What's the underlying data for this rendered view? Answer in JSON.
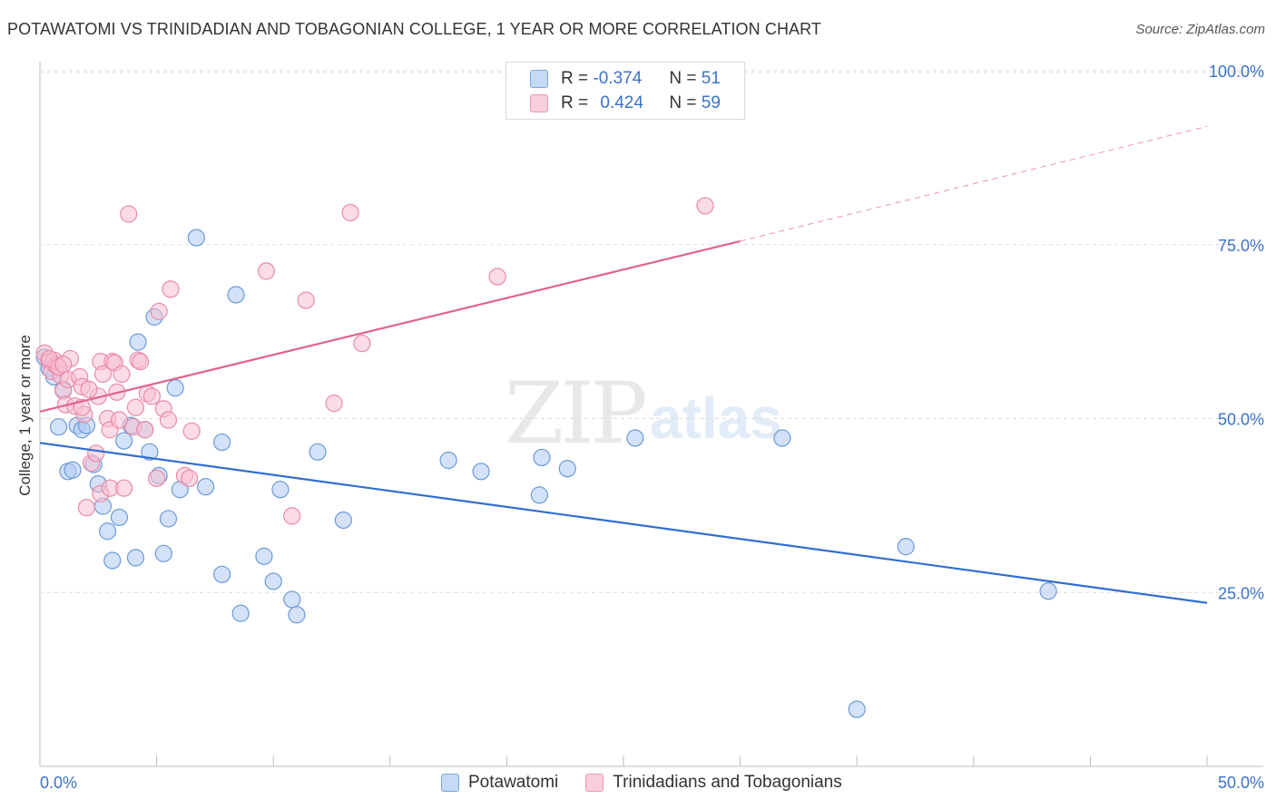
{
  "title": "POTAWATOMI VS TRINIDADIAN AND TOBAGONIAN COLLEGE, 1 YEAR OR MORE CORRELATION CHART",
  "source": "Source: ZipAtlas.com",
  "watermark": {
    "zip": "ZIP",
    "atlas": "atlas"
  },
  "legend": {
    "r_label": "R =",
    "n_label": "N =",
    "series1": {
      "r": "-0.374",
      "n": "51"
    },
    "series2": {
      "r": "0.424",
      "n": "59"
    }
  },
  "colors": {
    "blue_fill": "#aecbf2",
    "blue_stroke": "#6b9ad8",
    "blue_line": "#2f6fcf",
    "pink_fill": "#f7c0d1",
    "pink_stroke": "#e98aa8",
    "pink_line": "#e0648d",
    "grid": "#dcdcdc",
    "tick_label": "#3a72c8"
  },
  "chart_data": {
    "type": "scatter",
    "title": "POTAWATOMI VS TRINIDADIAN AND TOBAGONIAN COLLEGE, 1 YEAR OR MORE CORRELATION CHART",
    "xlabel": "",
    "ylabel": "College, 1 year or more",
    "xlim": [
      0,
      50
    ],
    "ylim": [
      0,
      105
    ],
    "x_tick_labels": [
      "0.0%",
      "50.0%"
    ],
    "y_ticks": [
      25,
      50,
      75,
      100
    ],
    "y_tick_labels": [
      "25.0%",
      "50.0%",
      "75.0%",
      "100.0%"
    ],
    "grid": true,
    "series": [
      {
        "name": "Potawatomi",
        "trend": {
          "x": [
            0,
            50
          ],
          "y": [
            46.5,
            23.5
          ],
          "dashed_from": null
        },
        "points": [
          [
            0.2,
            58.8
          ],
          [
            0.4,
            57.2
          ],
          [
            0.6,
            56.0
          ],
          [
            0.8,
            48.8
          ],
          [
            1.0,
            54.2
          ],
          [
            1.2,
            42.4
          ],
          [
            1.4,
            42.6
          ],
          [
            1.6,
            49.0
          ],
          [
            1.8,
            48.4
          ],
          [
            2.0,
            49.0
          ],
          [
            2.3,
            43.4
          ],
          [
            2.5,
            40.6
          ],
          [
            2.7,
            37.4
          ],
          [
            2.9,
            33.8
          ],
          [
            3.1,
            29.6
          ],
          [
            3.4,
            35.8
          ],
          [
            3.6,
            46.8
          ],
          [
            3.9,
            49.0
          ],
          [
            4.1,
            30.0
          ],
          [
            4.2,
            61.0
          ],
          [
            4.5,
            48.4
          ],
          [
            4.7,
            45.2
          ],
          [
            4.9,
            64.6
          ],
          [
            5.1,
            41.8
          ],
          [
            5.3,
            30.6
          ],
          [
            5.5,
            35.6
          ],
          [
            5.8,
            54.4
          ],
          [
            6.0,
            39.8
          ],
          [
            6.7,
            76.0
          ],
          [
            7.1,
            40.2
          ],
          [
            7.8,
            46.6
          ],
          [
            7.8,
            27.6
          ],
          [
            8.4,
            67.8
          ],
          [
            8.6,
            22.0
          ],
          [
            9.6,
            30.2
          ],
          [
            10.0,
            26.6
          ],
          [
            10.3,
            39.8
          ],
          [
            10.8,
            24.0
          ],
          [
            11.0,
            21.8
          ],
          [
            11.9,
            45.2
          ],
          [
            13.0,
            35.4
          ],
          [
            17.5,
            44.0
          ],
          [
            18.9,
            42.4
          ],
          [
            21.4,
            39.0
          ],
          [
            21.5,
            44.4
          ],
          [
            22.6,
            42.8
          ],
          [
            25.5,
            47.2
          ],
          [
            31.8,
            47.2
          ],
          [
            35.0,
            8.2
          ],
          [
            37.1,
            31.6
          ],
          [
            43.2,
            25.2
          ]
        ]
      },
      {
        "name": "Trinidadians and Tobagonians",
        "trend": {
          "x": [
            0,
            30,
            50
          ],
          "y": [
            51.0,
            75.5,
            92.0
          ],
          "dashed_from": 30
        },
        "points": [
          [
            0.2,
            59.4
          ],
          [
            0.4,
            58.2
          ],
          [
            0.5,
            56.8
          ],
          [
            0.6,
            58.4
          ],
          [
            0.7,
            57.6
          ],
          [
            0.9,
            56.2
          ],
          [
            1.0,
            54.0
          ],
          [
            1.1,
            52.0
          ],
          [
            1.2,
            55.6
          ],
          [
            1.3,
            58.6
          ],
          [
            1.5,
            51.8
          ],
          [
            1.7,
            56.0
          ],
          [
            1.8,
            54.6
          ],
          [
            1.9,
            50.6
          ],
          [
            2.0,
            37.2
          ],
          [
            2.2,
            43.6
          ],
          [
            2.4,
            45.0
          ],
          [
            2.5,
            53.2
          ],
          [
            2.6,
            58.2
          ],
          [
            2.6,
            39.2
          ],
          [
            2.7,
            56.4
          ],
          [
            2.9,
            50.0
          ],
          [
            3.0,
            48.4
          ],
          [
            3.0,
            40.0
          ],
          [
            3.1,
            58.2
          ],
          [
            3.2,
            58.0
          ],
          [
            3.3,
            53.8
          ],
          [
            3.4,
            49.8
          ],
          [
            3.5,
            56.4
          ],
          [
            3.6,
            40.0
          ],
          [
            3.8,
            79.4
          ],
          [
            4.0,
            48.8
          ],
          [
            4.1,
            51.6
          ],
          [
            4.2,
            58.4
          ],
          [
            4.3,
            58.2
          ],
          [
            4.5,
            48.4
          ],
          [
            4.6,
            53.6
          ],
          [
            4.8,
            53.2
          ],
          [
            5.0,
            41.4
          ],
          [
            5.1,
            65.4
          ],
          [
            5.3,
            51.4
          ],
          [
            5.5,
            49.8
          ],
          [
            5.6,
            68.6
          ],
          [
            6.2,
            41.8
          ],
          [
            6.4,
            41.4
          ],
          [
            6.5,
            48.2
          ],
          [
            9.7,
            71.2
          ],
          [
            10.8,
            36.0
          ],
          [
            11.4,
            67.0
          ],
          [
            12.6,
            52.2
          ],
          [
            13.3,
            79.6
          ],
          [
            13.8,
            60.8
          ],
          [
            19.6,
            70.4
          ],
          [
            28.5,
            80.6
          ],
          [
            0.4,
            58.6
          ],
          [
            0.8,
            57.4
          ],
          [
            1.0,
            57.8
          ],
          [
            1.8,
            51.6
          ],
          [
            2.1,
            54.2
          ]
        ]
      }
    ]
  },
  "bottom_legend": {
    "item1": "Potawatomi",
    "item2": "Trinidadians and Tobagonians"
  }
}
